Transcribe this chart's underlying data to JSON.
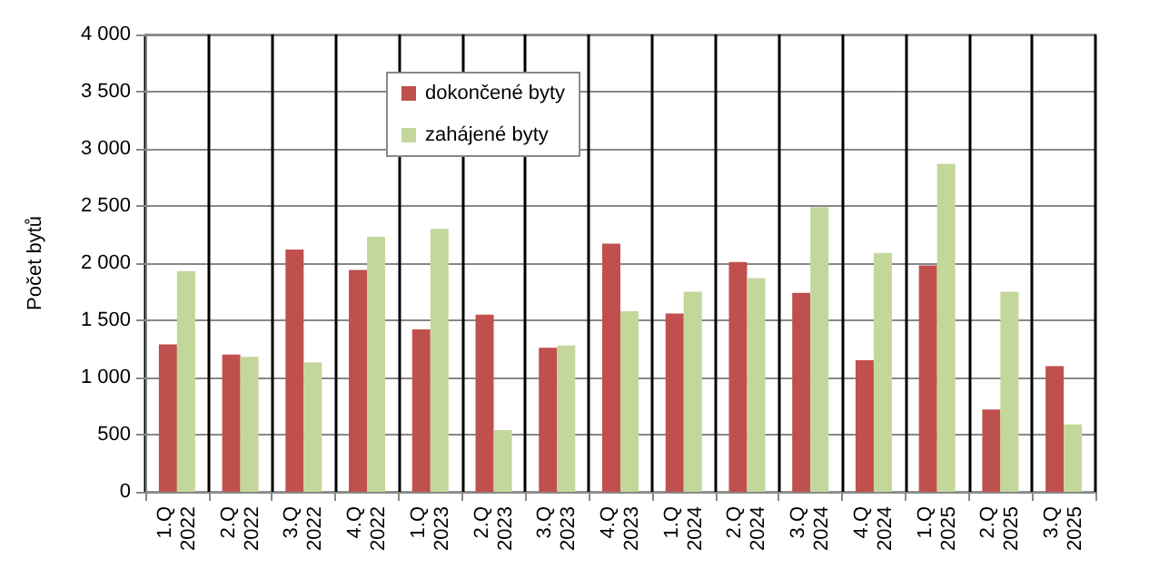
{
  "chart_data": {
    "type": "bar",
    "ylabel": "Počet bytů",
    "categories": [
      "1.Q\n2022",
      "2.Q\n2022",
      "3.Q\n2022",
      "4.Q\n2022",
      "1.Q\n2023",
      "2.Q\n2023",
      "3.Q\n2023",
      "4.Q\n2023",
      "1.Q\n2024",
      "2.Q\n2024",
      "3.Q\n2024",
      "4.Q\n2024",
      "1.Q\n2025",
      "2.Q\n2025",
      "3.Q\n2025"
    ],
    "series": [
      {
        "name": "dokončené byty",
        "color": "#c0504d",
        "values": [
          1290,
          1200,
          2120,
          1940,
          1420,
          1550,
          1260,
          2170,
          1560,
          2010,
          1740,
          1150,
          1980,
          720,
          1100
        ]
      },
      {
        "name": "zahájené byty",
        "color": "#c4d79b",
        "values": [
          1930,
          1180,
          1130,
          2230,
          2300,
          540,
          1280,
          1580,
          1750,
          1870,
          2490,
          2090,
          2870,
          1750,
          590
        ]
      }
    ],
    "ylim": [
      0,
      4000
    ],
    "yticks": [
      0,
      {
        "value": 500,
        "label": "500"
      },
      {
        "value": 1000,
        "label": "1 000"
      },
      {
        "value": 1500,
        "label": "1 500"
      },
      {
        "value": 2000,
        "label": "2 000"
      },
      {
        "value": 2500,
        "label": "2 500"
      },
      {
        "value": 3000,
        "label": "3 000"
      },
      {
        "value": 3500,
        "label": "3 500"
      },
      {
        "value": 4000,
        "label": "4 000"
      }
    ],
    "grid": true,
    "legend": "top"
  }
}
